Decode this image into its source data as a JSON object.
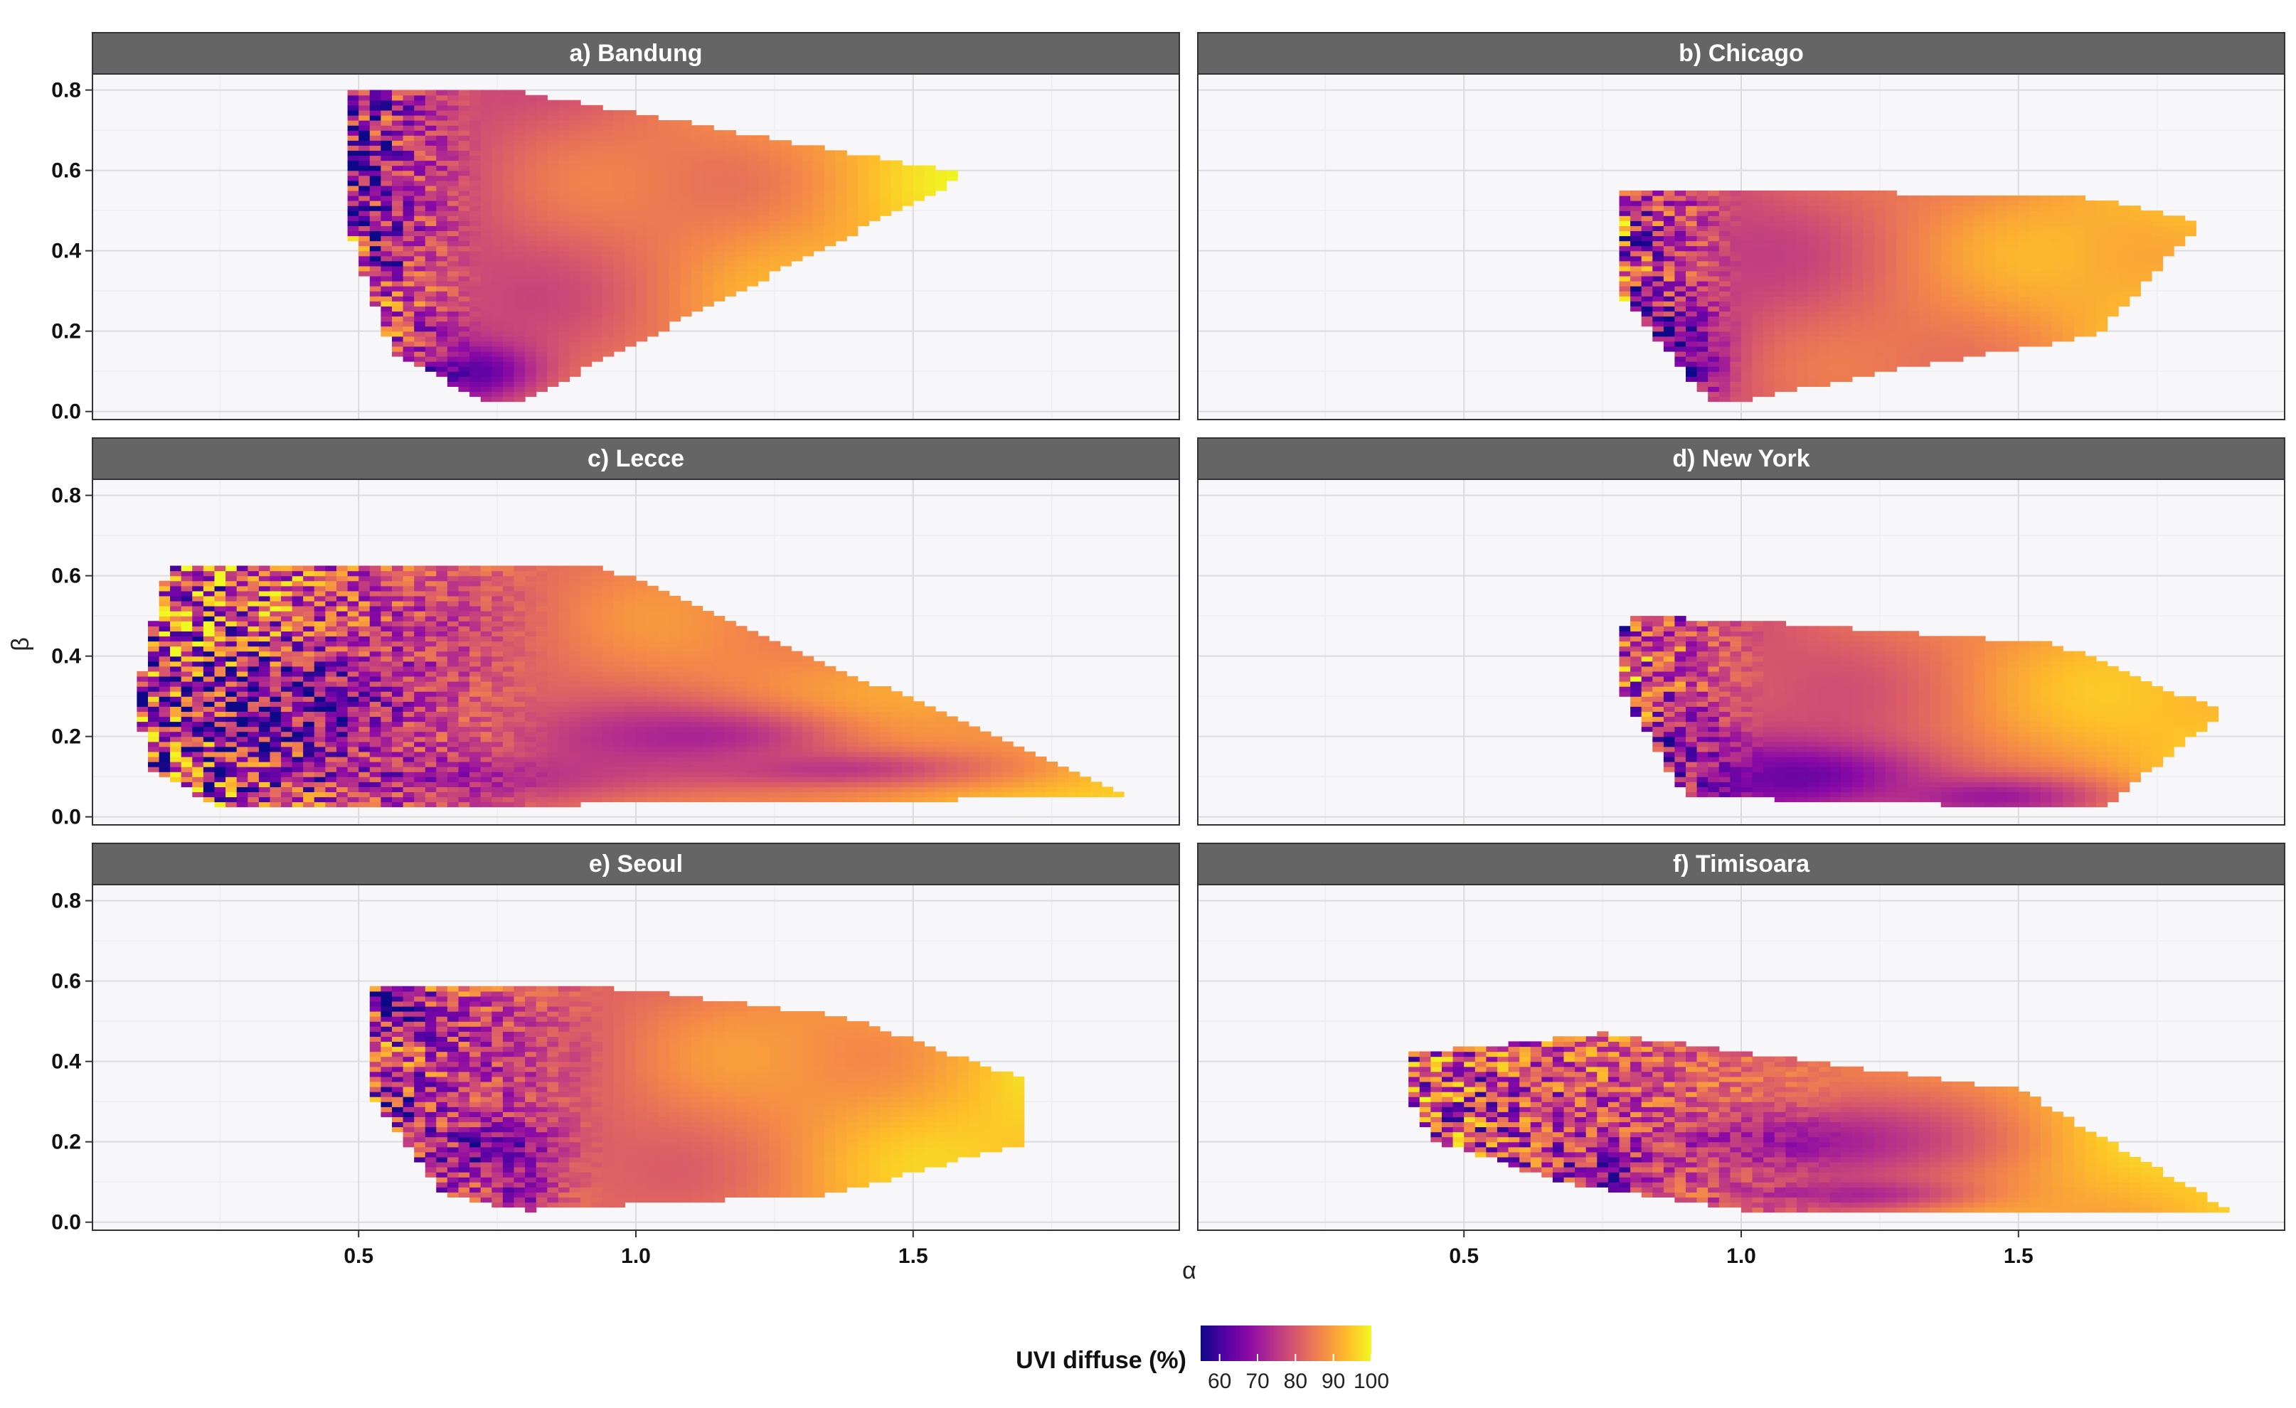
{
  "chart_data": {
    "type": "heatmap",
    "layout": "faceted 3x2",
    "xlabel": "α",
    "ylabel": "β",
    "xlim": [
      0.02,
      1.98
    ],
    "ylim": [
      -0.02,
      0.84
    ],
    "x_ticks": [
      0.5,
      1.0,
      1.5
    ],
    "x_tick_labels": [
      "0.5",
      "1.0",
      "1.5"
    ],
    "y_ticks": [
      0.0,
      0.2,
      0.4,
      0.6,
      0.8
    ],
    "y_tick_labels": [
      "0.0",
      "0.2",
      "0.4",
      "0.6",
      "0.8"
    ],
    "legend": {
      "title": "UVI diffuse (%)",
      "placement": "bottom",
      "range": [
        55,
        100
      ],
      "ticks": [
        60,
        70,
        80,
        90,
        100
      ],
      "tick_labels": [
        "60",
        "70",
        "80",
        "90",
        "100"
      ],
      "colors": [
        "#0d0887",
        "#5302a3",
        "#8b0aa5",
        "#b83289",
        "#db5c68",
        "#f48849",
        "#febd2a",
        "#f0f921"
      ]
    },
    "panels": [
      {
        "title": "a) Bandung",
        "hull": [
          [
            0.48,
            0.8
          ],
          [
            0.77,
            0.8
          ],
          [
            1.6,
            0.59
          ],
          [
            0.8,
            0.03
          ],
          [
            0.72,
            0.03
          ],
          [
            0.56,
            0.15
          ],
          [
            0.49,
            0.42
          ]
        ],
        "hotspots": [
          [
            0.52,
            0.62,
            0.05,
            0.14,
            62
          ],
          [
            0.55,
            0.4,
            0.05,
            0.07,
            65
          ],
          [
            0.7,
            0.1,
            0.12,
            0.07,
            62
          ],
          [
            0.65,
            0.2,
            0.05,
            0.05,
            70
          ],
          [
            0.6,
            0.75,
            0.06,
            0.05,
            70
          ]
        ],
        "noise": {
          "x": [
            0.48,
            0.72
          ],
          "amp": 25
        }
      },
      {
        "title": "b) Chicago",
        "hull": [
          [
            0.79,
            0.55
          ],
          [
            1.1,
            0.55
          ],
          [
            1.65,
            0.53
          ],
          [
            1.83,
            0.47
          ],
          [
            1.64,
            0.19
          ],
          [
            1.26,
            0.1
          ],
          [
            1.02,
            0.03
          ],
          [
            0.94,
            0.03
          ],
          [
            0.79,
            0.28
          ]
        ],
        "hotspots": [
          [
            0.86,
            0.18,
            0.09,
            0.1,
            60
          ],
          [
            0.88,
            0.1,
            0.07,
            0.07,
            62
          ],
          [
            0.84,
            0.42,
            0.05,
            0.1,
            72
          ]
        ],
        "noise": {
          "x": [
            0.79,
            1.0
          ],
          "amp": 24
        }
      },
      {
        "title": "c) Lecce",
        "hull": [
          [
            0.16,
            0.62
          ],
          [
            0.93,
            0.63
          ],
          [
            1.9,
            0.05
          ],
          [
            1.4,
            0.04
          ],
          [
            0.26,
            0.02
          ],
          [
            0.12,
            0.12
          ],
          [
            0.1,
            0.3
          ],
          [
            0.14,
            0.55
          ]
        ],
        "hotspots": [
          [
            0.4,
            0.28,
            0.25,
            0.16,
            65
          ],
          [
            1.1,
            0.2,
            0.3,
            0.08,
            72
          ],
          [
            0.6,
            0.1,
            0.35,
            0.06,
            70
          ],
          [
            1.35,
            0.12,
            0.3,
            0.05,
            75
          ]
        ],
        "noise": {
          "x": [
            0.1,
            0.85
          ],
          "amp": 30
        }
      },
      {
        "title": "d) New York",
        "hull": [
          [
            0.8,
            0.5
          ],
          [
            1.1,
            0.48
          ],
          [
            1.57,
            0.43
          ],
          [
            1.87,
            0.26
          ],
          [
            1.65,
            0.02
          ],
          [
            0.9,
            0.05
          ],
          [
            0.79,
            0.3
          ],
          [
            0.78,
            0.45
          ]
        ],
        "hotspots": [
          [
            1.1,
            0.1,
            0.25,
            0.09,
            64
          ],
          [
            0.9,
            0.2,
            0.08,
            0.1,
            68
          ],
          [
            1.45,
            0.05,
            0.2,
            0.05,
            70
          ]
        ],
        "noise": {
          "x": [
            0.78,
            1.05
          ],
          "amp": 24
        }
      },
      {
        "title": "e) Seoul",
        "hull": [
          [
            0.52,
            0.58
          ],
          [
            0.6,
            0.59
          ],
          [
            1.0,
            0.58
          ],
          [
            1.38,
            0.51
          ],
          [
            1.71,
            0.35
          ],
          [
            1.71,
            0.2
          ],
          [
            1.35,
            0.07
          ],
          [
            0.8,
            0.03
          ],
          [
            0.65,
            0.07
          ],
          [
            0.53,
            0.3
          ],
          [
            0.51,
            0.5
          ]
        ],
        "hotspots": [
          [
            0.58,
            0.52,
            0.05,
            0.05,
            60
          ],
          [
            0.75,
            0.18,
            0.12,
            0.09,
            64
          ],
          [
            0.8,
            0.08,
            0.05,
            0.04,
            66
          ],
          [
            0.6,
            0.3,
            0.06,
            0.06,
            70
          ]
        ],
        "noise": {
          "x": [
            0.51,
            0.95
          ],
          "amp": 22
        }
      },
      {
        "title": "f) Timisoara",
        "hull": [
          [
            0.4,
            0.42
          ],
          [
            0.55,
            0.44
          ],
          [
            0.75,
            0.47
          ],
          [
            1.5,
            0.33
          ],
          [
            1.88,
            0.03
          ],
          [
            1.0,
            0.03
          ],
          [
            0.68,
            0.1
          ],
          [
            0.45,
            0.2
          ],
          [
            0.39,
            0.33
          ]
        ],
        "hotspots": [
          [
            1.1,
            0.2,
            0.3,
            0.1,
            70
          ],
          [
            0.75,
            0.12,
            0.1,
            0.05,
            66
          ],
          [
            1.2,
            0.07,
            0.2,
            0.04,
            72
          ]
        ],
        "noise": {
          "x": [
            0.39,
            1.2
          ],
          "amp": 24
        }
      }
    ]
  }
}
